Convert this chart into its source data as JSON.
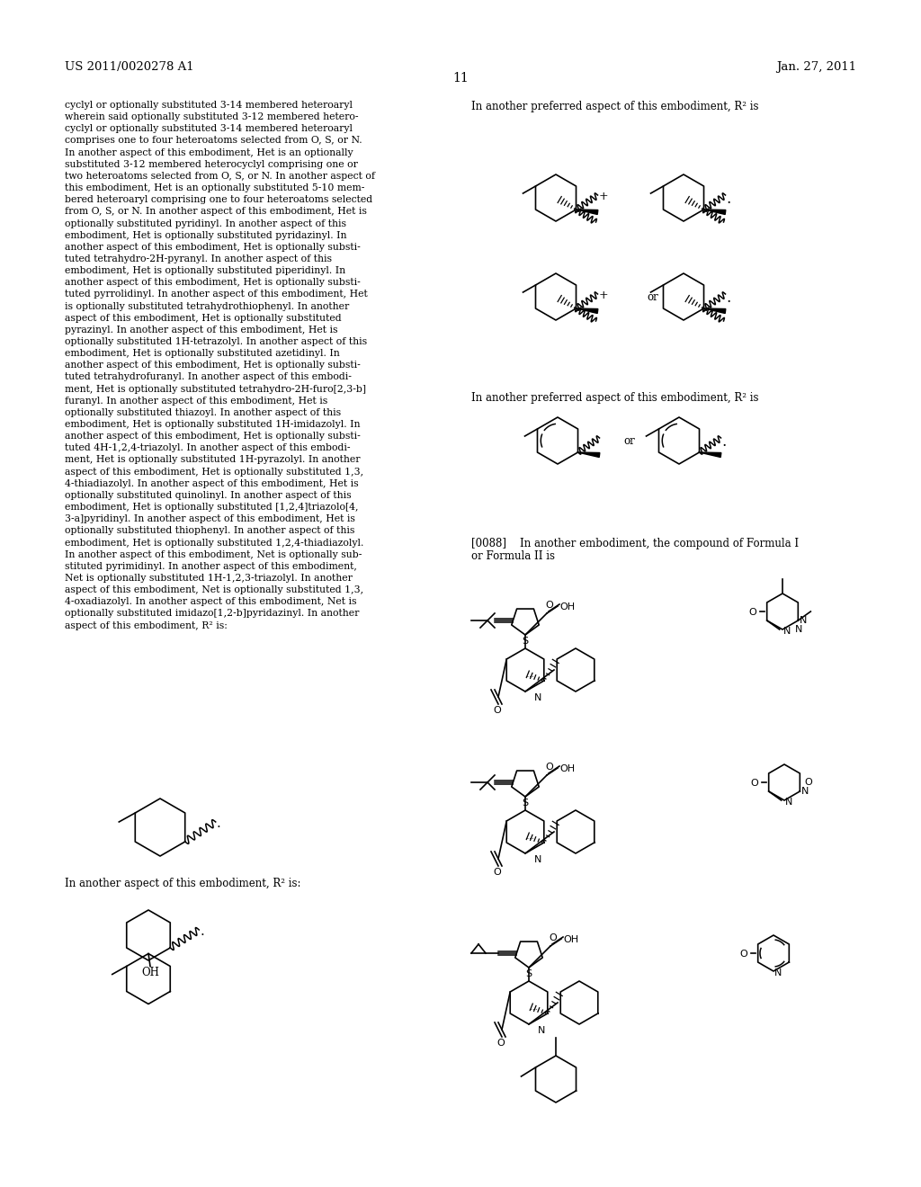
{
  "page_header_left": "US 2011/0020278 A1",
  "page_header_right": "Jan. 27, 2011",
  "page_number": "11",
  "background_color": "#ffffff",
  "left_col_text_lines": [
    "cyclyl or optionally substituted 3-14 membered heteroaryl",
    "wherein said optionally substituted 3-12 membered hetero-",
    "cyclyl or optionally substituted 3-14 membered heteroaryl",
    "comprises one to four heteroatoms selected from O, S, or N.",
    "In another aspect of this embodiment, Het is an optionally",
    "substituted 3-12 membered heterocyclyl comprising one or",
    "two heteroatoms selected from O, S, or N. In another aspect of",
    "this embodiment, Het is an optionally substituted 5-10 mem-",
    "bered heteroaryl comprising one to four heteroatoms selected",
    "from O, S, or N. In another aspect of this embodiment, Het is",
    "optionally substituted pyridinyl. In another aspect of this",
    "embodiment, Het is optionally substituted pyridazinyl. In",
    "another aspect of this embodiment, Het is optionally substi-",
    "tuted tetrahydro-2H-pyranyl. In another aspect of this",
    "embodiment, Het is optionally substituted piperidinyl. In",
    "another aspect of this embodiment, Het is optionally substi-",
    "tuted pyrrolidinyl. In another aspect of this embodiment, Het",
    "is optionally substituted tetrahydrothiophenyl. In another",
    "aspect of this embodiment, Het is optionally substituted",
    "pyrazinyl. In another aspect of this embodiment, Het is",
    "optionally substituted 1H-tetrazolyl. In another aspect of this",
    "embodiment, Het is optionally substituted azetidinyl. In",
    "another aspect of this embodiment, Het is optionally substi-",
    "tuted tetrahydrofuranyl. In another aspect of this embodi-",
    "ment, Het is optionally substituted tetrahydro-2H-furo[2,3-b]",
    "furanyl. In another aspect of this embodiment, Het is",
    "optionally substituted thiazoyl. In another aspect of this",
    "embodiment, Het is optionally substituted 1H-imidazolyl. In",
    "another aspect of this embodiment, Het is optionally substi-",
    "tuted 4H-1,2,4-triazolyl. In another aspect of this embodi-",
    "ment, Het is optionally substituted 1H-pyrazolyl. In another",
    "aspect of this embodiment, Het is optionally substituted 1,3,",
    "4-thiadiazolyl. In another aspect of this embodiment, Het is",
    "optionally substituted quinolinyl. In another aspect of this",
    "embodiment, Het is optionally substituted [1,2,4]triazolo[4,",
    "3-a]pyridinyl. In another aspect of this embodiment, Het is",
    "optionally substituted thiophenyl. In another aspect of this",
    "embodiment, Het is optionally substituted 1,2,4-thiadiazolyl.",
    "In another aspect of this embodiment, Net is optionally sub-",
    "stituted pyrimidinyl. In another aspect of this embodiment,",
    "Net is optionally substituted 1H-1,2,3-triazolyl. In another",
    "aspect of this embodiment, Net is optionally substituted 1,3,",
    "4-oxadiazolyl. In another aspect of this embodiment, Net is",
    "optionally substituted imidazo[1,2-b]pyridazinyl. In another",
    "aspect of this embodiment, R² is:"
  ],
  "right_text1": "In another preferred aspect of this embodiment, R² is",
  "right_text2": "In another preferred aspect of this embodiment, R² is",
  "right_text3_line1": "[0088]    In another embodiment, the compound of Formula I",
  "right_text3_line2": "or Formula II is",
  "left_struct2_label": "In another aspect of this embodiment, R² is:",
  "or_label": "or"
}
